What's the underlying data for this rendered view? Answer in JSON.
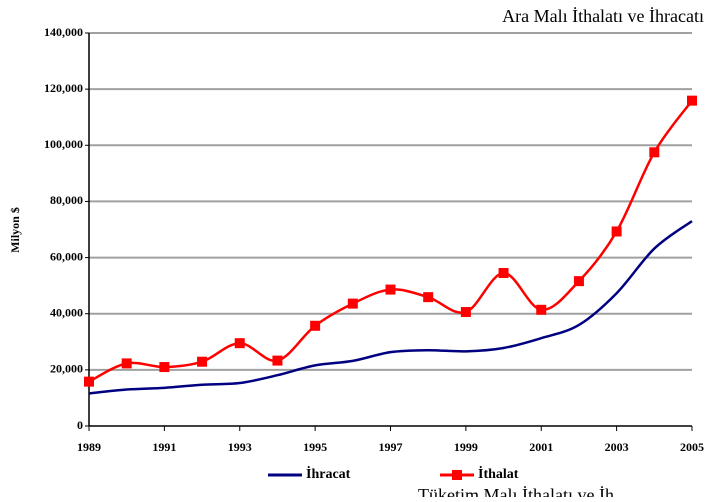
{
  "chart_data": {
    "type": "line",
    "title": "Ara Malı İthalatı ve İhracatı",
    "ylabel": "Milyon $",
    "annotation": "Tüketim Malı İthalatı ve İh",
    "x": [
      1989,
      1990,
      1991,
      1992,
      1993,
      1994,
      1995,
      1996,
      1997,
      1998,
      1999,
      2000,
      2001,
      2002,
      2003,
      2004,
      2005
    ],
    "xlim": [
      1989,
      2005
    ],
    "xticks": [
      1989,
      1991,
      1993,
      1995,
      1997,
      1999,
      2001,
      2003,
      2005
    ],
    "ylim": [
      0,
      140000
    ],
    "yticks": [
      0,
      {
        "value": 20000,
        "label": "20,000"
      },
      {
        "value": 40000,
        "label": "40,000"
      },
      {
        "value": 60000,
        "label": "60,000"
      },
      {
        "value": 80000,
        "label": "80,000"
      },
      {
        "value": 100000,
        "label": "100,000"
      },
      {
        "value": 120000,
        "label": "120,000"
      },
      {
        "value": 140000,
        "label": "140,000"
      }
    ],
    "grid": true,
    "legend": "bottom",
    "series": [
      {
        "name": "İhracat",
        "color": "#000080",
        "marker": false,
        "values": [
          11600,
          13000,
          13600,
          14700,
          15300,
          18100,
          21600,
          23200,
          26300,
          27000,
          26600,
          27800,
          31300,
          36000,
          47300,
          63200,
          73000
        ]
      },
      {
        "name": "İthalat",
        "color": "#ff0000",
        "marker": true,
        "values": [
          15800,
          22300,
          21000,
          22900,
          29500,
          23300,
          35700,
          43600,
          48600,
          45900,
          40600,
          54500,
          41400,
          51600,
          69300,
          97500,
          115900
        ]
      }
    ]
  }
}
